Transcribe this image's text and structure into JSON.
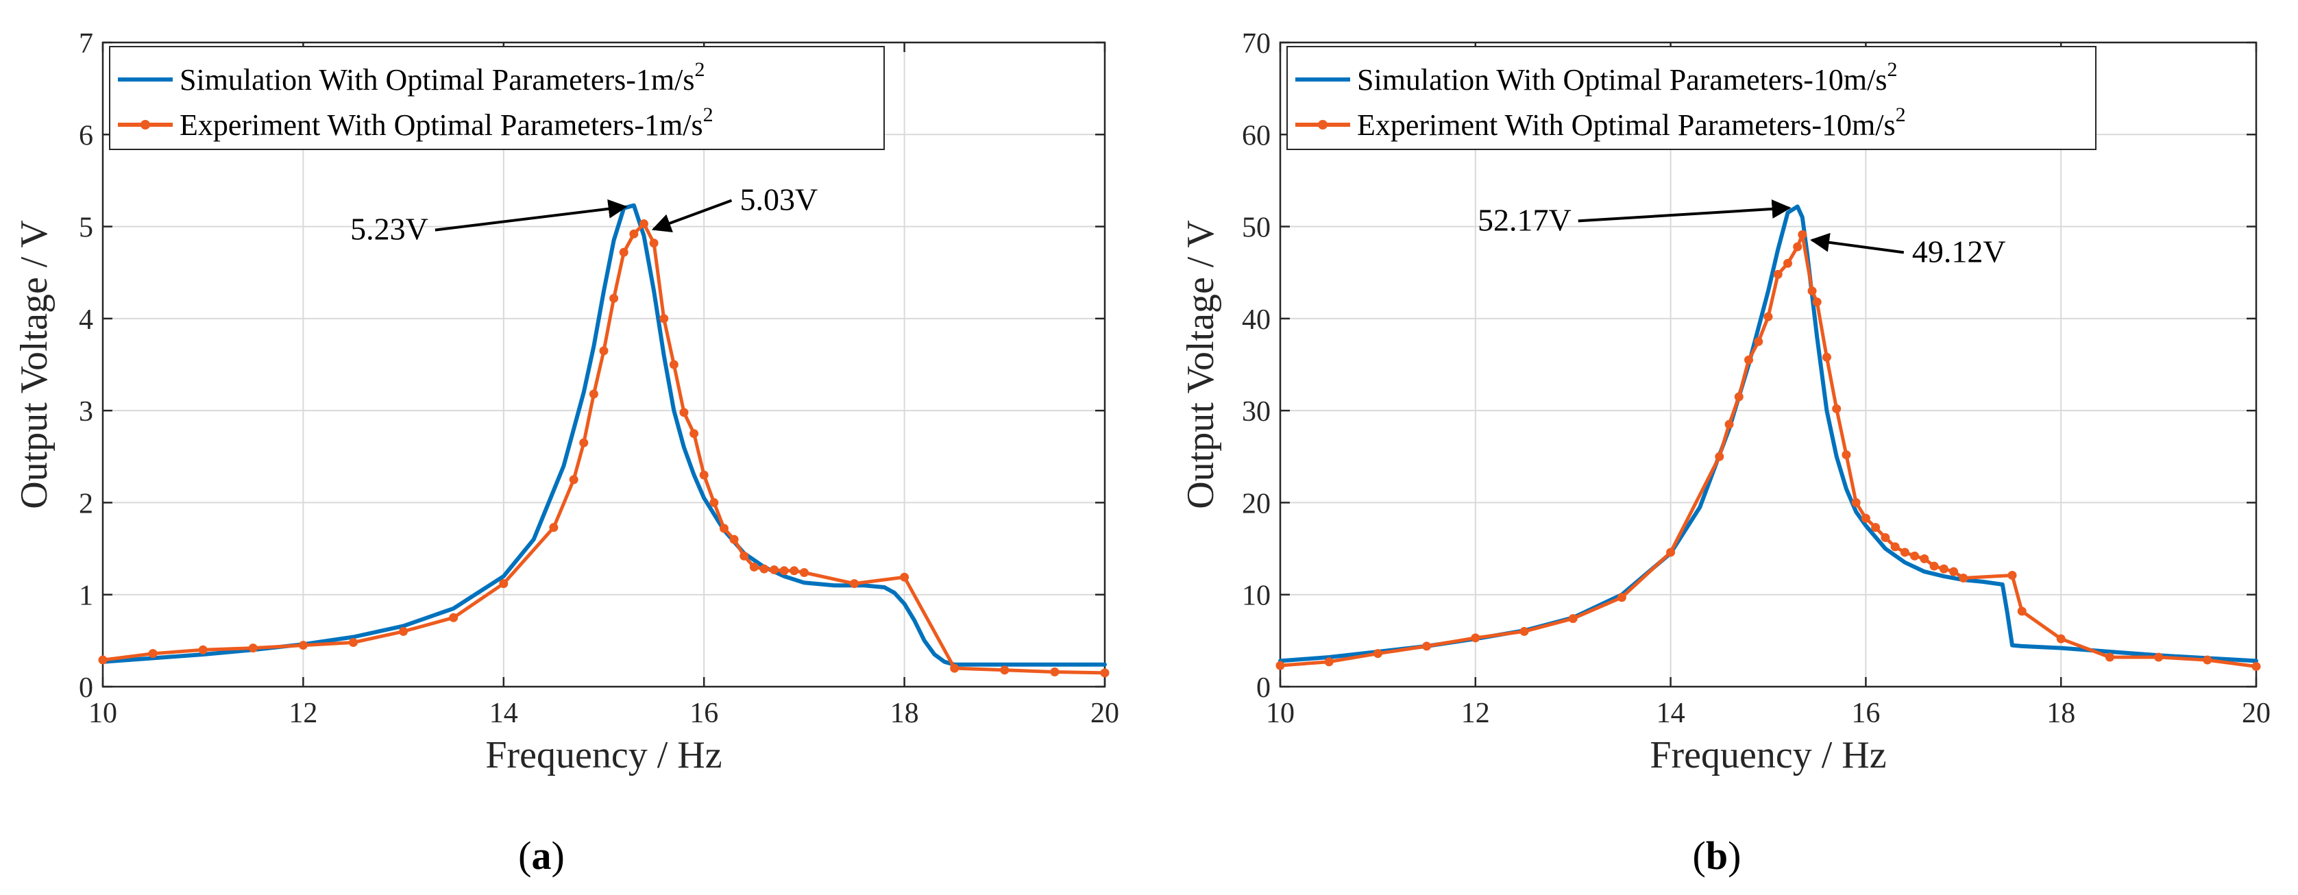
{
  "colors": {
    "simulation": "#0072BD",
    "experiment": "#ED5B1E"
  },
  "chart_data": [
    {
      "type": "line",
      "panel_label": "a",
      "xlabel": "Frequency / Hz",
      "ylabel": "Output Voltage / V",
      "xlim": [
        10,
        20
      ],
      "ylim": [
        0,
        7
      ],
      "xticks": [
        10,
        12,
        14,
        16,
        18,
        20
      ],
      "yticks": [
        0,
        1,
        2,
        3,
        4,
        5,
        6,
        7
      ],
      "grid": true,
      "legend_position": "top-left",
      "series": [
        {
          "name": "Simulation With Optimal Parameters-1m/s",
          "name_sup": "2",
          "marker": "none",
          "x": [
            10,
            10.5,
            11,
            11.5,
            12,
            12.5,
            13,
            13.5,
            14,
            14.3,
            14.6,
            14.8,
            14.9,
            15.0,
            15.1,
            15.2,
            15.3,
            15.4,
            15.5,
            15.6,
            15.7,
            15.8,
            15.9,
            16.0,
            16.2,
            16.4,
            16.6,
            16.8,
            17.0,
            17.3,
            17.6,
            17.8,
            17.9,
            18.0,
            18.1,
            18.2,
            18.3,
            18.4,
            18.5,
            19.0,
            19.5,
            20.0
          ],
          "y": [
            0.27,
            0.31,
            0.35,
            0.4,
            0.46,
            0.54,
            0.66,
            0.85,
            1.2,
            1.6,
            2.4,
            3.2,
            3.7,
            4.3,
            4.85,
            5.2,
            5.23,
            4.9,
            4.3,
            3.6,
            3.0,
            2.6,
            2.3,
            2.05,
            1.7,
            1.45,
            1.3,
            1.2,
            1.13,
            1.1,
            1.1,
            1.08,
            1.02,
            0.9,
            0.72,
            0.5,
            0.35,
            0.27,
            0.24,
            0.24,
            0.24,
            0.24
          ]
        },
        {
          "name": "Experiment With Optimal Parameters-1m/s",
          "name_sup": "2",
          "marker": "dot",
          "x": [
            10,
            10.5,
            11,
            11.5,
            12,
            12.5,
            13,
            13.5,
            14,
            14.5,
            14.7,
            14.8,
            14.9,
            15.0,
            15.1,
            15.2,
            15.3,
            15.4,
            15.5,
            15.6,
            15.7,
            15.8,
            15.9,
            16.0,
            16.1,
            16.2,
            16.3,
            16.4,
            16.5,
            16.6,
            16.7,
            16.8,
            16.9,
            17.0,
            17.5,
            18.0,
            18.5,
            19.0,
            19.5,
            20.0
          ],
          "y": [
            0.29,
            0.36,
            0.4,
            0.42,
            0.45,
            0.48,
            0.6,
            0.75,
            1.12,
            1.73,
            2.25,
            2.65,
            3.18,
            3.65,
            4.22,
            4.72,
            4.92,
            5.03,
            4.82,
            4.0,
            3.5,
            2.98,
            2.75,
            2.3,
            2.0,
            1.72,
            1.6,
            1.42,
            1.3,
            1.28,
            1.27,
            1.26,
            1.26,
            1.24,
            1.12,
            1.19,
            0.2,
            0.18,
            0.16,
            0.15
          ]
        }
      ],
      "annotations": [
        {
          "text": "5.23V",
          "x": 15.3,
          "y": 5.23,
          "side": "left"
        },
        {
          "text": "5.03V",
          "x": 15.4,
          "y": 5.03,
          "side": "right"
        }
      ]
    },
    {
      "type": "line",
      "panel_label": "b",
      "xlabel": "Frequency / Hz",
      "ylabel": "Output Voltage / V",
      "xlim": [
        10,
        20
      ],
      "ylim": [
        0,
        70
      ],
      "xticks": [
        10,
        12,
        14,
        16,
        18,
        20
      ],
      "yticks": [
        0,
        10,
        20,
        30,
        40,
        50,
        60,
        70
      ],
      "grid": true,
      "legend_position": "top-left",
      "series": [
        {
          "name": "Simulation With Optimal Parameters-10m/s",
          "name_sup": "2",
          "marker": "none",
          "x": [
            10,
            10.5,
            11,
            11.5,
            12,
            12.5,
            13,
            13.5,
            14,
            14.3,
            14.6,
            14.8,
            15.0,
            15.1,
            15.2,
            15.3,
            15.35,
            15.4,
            15.5,
            15.6,
            15.7,
            15.8,
            15.9,
            16.0,
            16.2,
            16.4,
            16.6,
            16.8,
            17.0,
            17.2,
            17.4,
            17.45,
            17.5,
            17.6,
            18.0,
            18.5,
            19.0,
            19.5,
            20.0
          ],
          "y": [
            2.8,
            3.2,
            3.8,
            4.4,
            5.2,
            6.1,
            7.5,
            10.0,
            14.5,
            19.5,
            28.0,
            35.0,
            43.0,
            47.5,
            51.5,
            52.17,
            51.0,
            47.0,
            38.0,
            30.0,
            25.0,
            21.5,
            19.0,
            17.5,
            15.0,
            13.5,
            12.5,
            12.0,
            11.6,
            11.4,
            11.1,
            8.0,
            4.5,
            4.4,
            4.2,
            3.8,
            3.4,
            3.1,
            2.8
          ]
        },
        {
          "name": "Experiment With Optimal Parameters-10m/s",
          "name_sup": "2",
          "marker": "dot",
          "x": [
            10,
            10.5,
            11,
            11.5,
            12,
            12.5,
            13,
            13.5,
            14,
            14.5,
            14.6,
            14.7,
            14.8,
            14.9,
            15.0,
            15.1,
            15.2,
            15.3,
            15.35,
            15.45,
            15.5,
            15.6,
            15.7,
            15.8,
            15.9,
            16.0,
            16.1,
            16.2,
            16.3,
            16.4,
            16.5,
            16.6,
            16.7,
            16.8,
            16.9,
            17.0,
            17.5,
            17.6,
            18.0,
            18.5,
            19.0,
            19.5,
            20.0
          ],
          "y": [
            2.3,
            2.7,
            3.6,
            4.4,
            5.3,
            6.0,
            7.4,
            9.7,
            14.6,
            25.0,
            28.5,
            31.5,
            35.5,
            37.5,
            40.2,
            44.8,
            46.0,
            47.8,
            49.12,
            43.0,
            41.8,
            35.8,
            30.2,
            25.2,
            20.0,
            18.3,
            17.3,
            16.2,
            15.2,
            14.6,
            14.2,
            13.9,
            13.1,
            12.8,
            12.5,
            11.8,
            12.1,
            8.2,
            5.2,
            3.2,
            3.2,
            2.9,
            2.2
          ]
        }
      ],
      "annotations": [
        {
          "text": "52.17V",
          "x": 15.3,
          "y": 52.17,
          "side": "left"
        },
        {
          "text": "49.12V",
          "x": 15.35,
          "y": 49.12,
          "side": "right"
        }
      ]
    }
  ]
}
